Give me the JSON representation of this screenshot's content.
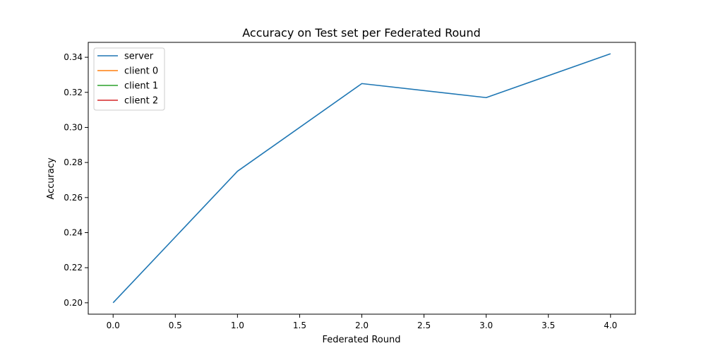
{
  "chart_data": {
    "type": "line",
    "title": "Accuracy on Test set per Federated Round",
    "xlabel": "Federated Round",
    "ylabel": "Accuracy",
    "xlim": [
      -0.2,
      4.2
    ],
    "ylim": [
      0.1935,
      0.3485
    ],
    "xticks": [
      0.0,
      0.5,
      1.0,
      1.5,
      2.0,
      2.5,
      3.0,
      3.5,
      4.0
    ],
    "xtick_labels": [
      "0.0",
      "0.5",
      "1.0",
      "1.5",
      "2.0",
      "2.5",
      "3.0",
      "3.5",
      "4.0"
    ],
    "yticks": [
      0.2,
      0.22,
      0.24,
      0.26,
      0.28,
      0.3,
      0.32,
      0.34
    ],
    "ytick_labels": [
      "0.20",
      "0.22",
      "0.24",
      "0.26",
      "0.28",
      "0.30",
      "0.32",
      "0.34"
    ],
    "grid": false,
    "legend_position": "top-left",
    "series": [
      {
        "name": "server",
        "color": "#1f77b4",
        "x": [
          0,
          1,
          2,
          3,
          4
        ],
        "y": [
          0.2,
          0.275,
          0.325,
          0.317,
          0.342
        ]
      },
      {
        "name": "client 0",
        "color": "#ff7f0e",
        "x": [],
        "y": []
      },
      {
        "name": "client 1",
        "color": "#2ca02c",
        "x": [],
        "y": []
      },
      {
        "name": "client 2",
        "color": "#d62728",
        "x": [],
        "y": []
      }
    ]
  }
}
